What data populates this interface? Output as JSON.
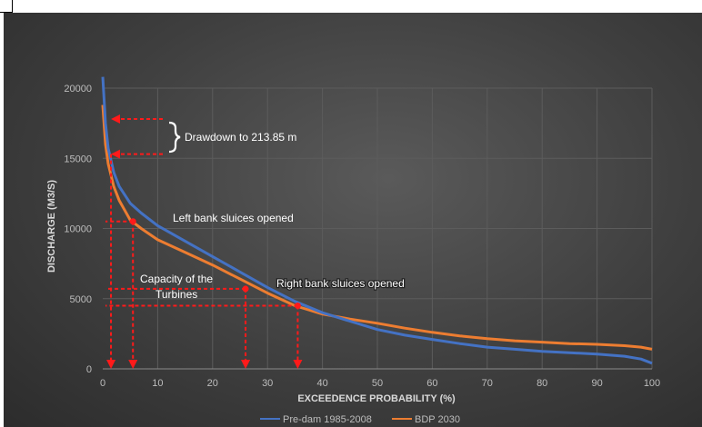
{
  "chart_data": {
    "type": "line",
    "xlabel": "EXCEEDENCE PROBABILITY (%)",
    "ylabel": "DISCHARGE (M3/S)",
    "xlim": [
      0,
      100
    ],
    "ylim": [
      0,
      20000
    ],
    "x_ticks": [
      "0",
      "10",
      "20",
      "30",
      "40",
      "50",
      "60",
      "70",
      "80",
      "90",
      "100"
    ],
    "y_ticks": [
      "0",
      "5000",
      "10000",
      "15000",
      "20000"
    ],
    "grid": true,
    "legend_position": "bottom",
    "series": [
      {
        "name": "Pre-dam 1985-2008",
        "color": "#4472c4",
        "x": [
          0,
          0.5,
          1,
          2,
          3,
          5,
          7,
          10,
          15,
          20,
          25,
          30,
          35,
          40,
          45,
          50,
          55,
          60,
          65,
          70,
          75,
          80,
          85,
          90,
          95,
          98,
          100
        ],
        "y": [
          20800,
          17500,
          15700,
          14000,
          13000,
          11800,
          11100,
          10200,
          9100,
          8000,
          6900,
          5800,
          4800,
          4000,
          3400,
          2800,
          2400,
          2100,
          1800,
          1550,
          1400,
          1250,
          1150,
          1050,
          900,
          700,
          400
        ]
      },
      {
        "name": "BDP 2030",
        "color": "#ed7d31",
        "x": [
          0,
          0.5,
          1,
          2,
          3,
          5,
          7,
          10,
          15,
          20,
          25,
          30,
          35,
          40,
          45,
          50,
          55,
          60,
          65,
          70,
          75,
          80,
          85,
          90,
          95,
          98,
          100
        ],
        "y": [
          18800,
          16000,
          14600,
          13000,
          12000,
          10600,
          10000,
          9200,
          8300,
          7400,
          6400,
          5400,
          4500,
          3900,
          3550,
          3250,
          2900,
          2600,
          2350,
          2150,
          2000,
          1900,
          1800,
          1750,
          1650,
          1550,
          1400
        ]
      }
    ],
    "annotations": {
      "drawdown": "Drawdown to 213.85 m",
      "left_bank": "Left bank sluices opened",
      "right_bank": "Right bank sluices opened",
      "capacity_line1": "Capacity of the",
      "capacity_line2": "Turbines"
    },
    "reference_lines": [
      {
        "label": "drawdown-upper",
        "y": 17800,
        "x": 1.5
      },
      {
        "label": "drawdown-lower",
        "y": 15300,
        "x": 1.5
      },
      {
        "label": "left-bank",
        "y": 10500,
        "x": 5.5
      },
      {
        "label": "capacity",
        "y": 5700,
        "x": 26
      },
      {
        "label": "right-bank",
        "y": 4500,
        "x": 35.5
      }
    ],
    "annotation_color": "#ff1a1a"
  }
}
